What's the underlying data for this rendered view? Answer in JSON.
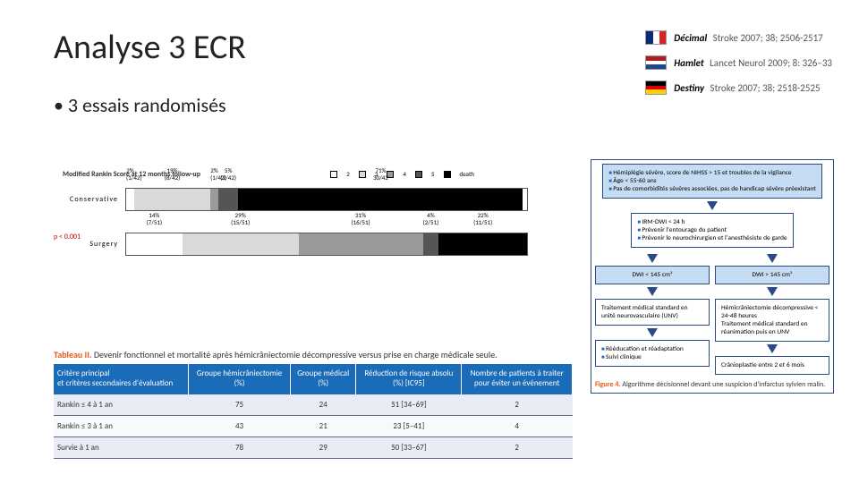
{
  "title": "Analyse 3 ECR",
  "bullet": "• 3 essais randomisés",
  "refs": [
    {
      "flag": "fr",
      "name": "Décimal",
      "cite": "Stroke 2007; 38; 2506-2517",
      "colors": [
        "#0b2b7a",
        "#ffffff",
        "#d8232a"
      ],
      "dir": "h"
    },
    {
      "flag": "nl",
      "name": "Hamlet",
      "cite": "Lancet Neurol 2009; 8: 326–33",
      "colors": [
        "#ae1c28",
        "#ffffff",
        "#21468b"
      ],
      "dir": "v"
    },
    {
      "flag": "de",
      "name": "Destiny",
      "cite": "Stroke 2007; 38; 2518-2525",
      "colors": [
        "#000000",
        "#dd0000",
        "#ffce00"
      ],
      "dir": "v"
    }
  ],
  "rankin": {
    "title": "Modified Rankin Score at 12 months follow-up",
    "legend": [
      {
        "label": "2",
        "color": "#ffffff"
      },
      {
        "label": "3",
        "color": "#d9d9d9"
      },
      {
        "label": "4",
        "color": "#9a9a9a"
      },
      {
        "label": "5",
        "color": "#555555"
      },
      {
        "label": "death",
        "color": "#000000"
      }
    ],
    "pval": "p < 0.001",
    "rows": [
      {
        "label": "Conservative",
        "segments": [
          {
            "pct": 2,
            "top": "2%",
            "bot": "(1/42)",
            "color": "#ffffff"
          },
          {
            "pct": 19,
            "top": "19%",
            "bot": "(8/42)",
            "color": "#d9d9d9"
          },
          {
            "pct": 2,
            "top": "2%",
            "bot": "(1/42)",
            "color": "#9a9a9a"
          },
          {
            "pct": 5,
            "top": "5%",
            "bot": "(2/42)",
            "color": "#555555"
          },
          {
            "pct": 71,
            "top": "71%",
            "bot": "30/42",
            "color": "#000000"
          }
        ]
      },
      {
        "label": "Surgery",
        "segments": [
          {
            "pct": 14,
            "top": "14%",
            "bot": "(7/51)",
            "color": "#ffffff"
          },
          {
            "pct": 29,
            "top": "29%",
            "bot": "(15/51)",
            "color": "#d9d9d9"
          },
          {
            "pct": 31,
            "top": "31%",
            "bot": "(16/51)",
            "color": "#9a9a9a"
          },
          {
            "pct": 4,
            "top": "4%",
            "bot": "(2/51)",
            "color": "#555555"
          },
          {
            "pct": 22,
            "top": "22%",
            "bot": "(11/51)",
            "color": "#000000"
          }
        ]
      }
    ]
  },
  "table": {
    "title_prefix": "Tableau II.",
    "title_rest": " Devenir fonctionnel et mortalité après hémicrâniectomie décompressive versus prise en charge médicale seule.",
    "headers": [
      "Critère principal\net critères secondaires d'évaluation",
      "Groupe hémicrâniectomie\n(%)",
      "Groupe médical\n(%)",
      "Réduction de risque absolu\n(%) [IC95]",
      "Nombre de patients à traiter\npour éviter un événement"
    ],
    "rows": [
      [
        "Rankin ≤ 4 à 1 an",
        "75",
        "24",
        "51 [34–69]",
        "2"
      ],
      [
        "Rankin ≤ 3 à 1 an",
        "43",
        "21",
        "23 [5–41]",
        "4"
      ],
      [
        "Survie à 1 an",
        "78",
        "29",
        "50 [33–67]",
        "2"
      ]
    ]
  },
  "algo": {
    "box1": [
      "Hémiplégie sévère, score de NIHSS > 15 et troubles de la vigilance",
      "Âge < 55-60 ans",
      "Pas de comorbidités sévères associées, pas de handicap sévère préexistant"
    ],
    "box2": [
      "IRM-DWI < 24 h",
      "Prévenir l'entourage du patient",
      "Prévenir le neurochirurgien et l'anesthésiste de garde"
    ],
    "split": {
      "left_head": "DWI < 145 cm³",
      "right_head": "DWI > 145 cm³",
      "left_body": "Traitement médical standard en unité neurovasculaire (UNV)",
      "right_body": "Hémicrâniectomie décompressive < 24-48 heures\nTraitement médical standard en réanimation puis en UNV",
      "left_foot_items": [
        "Rééducation et réadaptation",
        "Suivi clinique"
      ],
      "right_foot": "Crânioplastie entre 2 et 6 mois"
    },
    "caption_prefix": "Figure 4.",
    "caption_rest": " Algorithme décisionnel devant une suspicion d'infarctus sylvien malin."
  }
}
